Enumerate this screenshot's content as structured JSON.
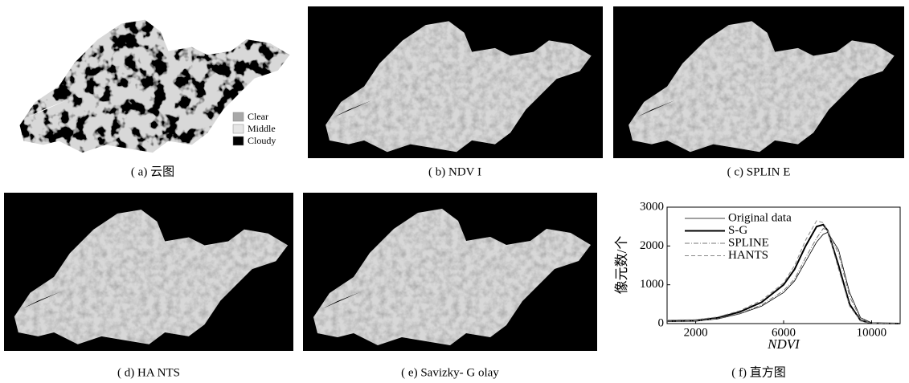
{
  "panels": [
    {
      "caption": "( a) 云图"
    },
    {
      "caption": "( b) NDV I"
    },
    {
      "caption": "( c) SPLIN E"
    },
    {
      "caption": "( d) HA NTS"
    },
    {
      "caption": "( e) Savizky- G olay"
    },
    {
      "caption": "( f) 直方图"
    }
  ],
  "cloud_legend": [
    {
      "label": "Clear",
      "color": "#a8a8a8"
    },
    {
      "label": "Middle",
      "color": "#e6e6e6"
    },
    {
      "label": "Cloudy",
      "color": "#000000"
    }
  ],
  "chart_data": {
    "type": "line",
    "x_label": "NDVI",
    "y_label": "像元数/个",
    "x": [
      700,
      2000,
      3000,
      4000,
      5000,
      6000,
      6500,
      7000,
      7500,
      7800,
      8000,
      8500,
      9000,
      9500,
      10000,
      11300
    ],
    "series": [
      {
        "name": "Original data",
        "color": "#000000",
        "line_style": "solid",
        "line_width": 0.8,
        "values": [
          50,
          60,
          120,
          250,
          450,
          800,
          1100,
          1600,
          2100,
          2300,
          2350,
          1900,
          800,
          150,
          20,
          0
        ]
      },
      {
        "name": "S-G",
        "color": "#000000",
        "line_style": "solid",
        "line_width": 2,
        "values": [
          70,
          80,
          150,
          300,
          550,
          1000,
          1400,
          2000,
          2500,
          2550,
          2400,
          1500,
          500,
          80,
          10,
          0
        ]
      },
      {
        "name": "SPLINE",
        "color": "#777777",
        "line_style": "dashdot",
        "line_width": 1,
        "values": [
          60,
          70,
          130,
          260,
          480,
          850,
          1150,
          1700,
          2200,
          2450,
          2400,
          1800,
          700,
          120,
          15,
          0
        ]
      },
      {
        "name": "HANTS",
        "color": "#888888",
        "line_style": "dashed",
        "line_width": 1,
        "values": [
          90,
          100,
          170,
          330,
          600,
          1050,
          1500,
          2150,
          2650,
          2600,
          2400,
          1400,
          450,
          70,
          10,
          0
        ]
      }
    ],
    "xlim": [
      700,
      11300
    ],
    "ylim": [
      0,
      3000
    ],
    "xticks": [
      2000,
      6000,
      10000
    ],
    "yticks": [
      0,
      1000,
      2000,
      3000
    ]
  }
}
